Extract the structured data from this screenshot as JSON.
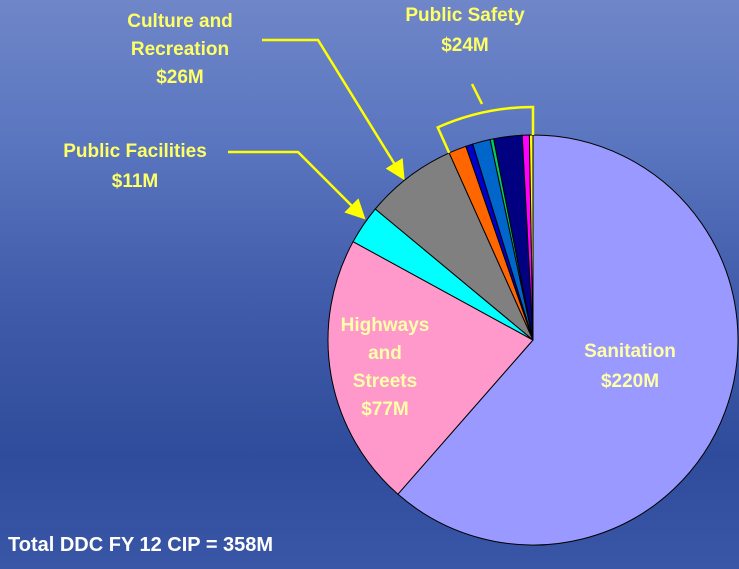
{
  "chart_data": {
    "type": "pie",
    "categories": [
      "Sanitation",
      "Highways and Streets",
      "Public Facilities",
      "Culture and Recreation",
      "Public Safety"
    ],
    "values": [
      220,
      77,
      11,
      26,
      24
    ],
    "value_labels": [
      "$220M",
      "$77M",
      "$11M",
      "$26M",
      "$24M"
    ],
    "colors": [
      "#9999ff",
      "#ff99cc",
      "#00ffff",
      "#808080",
      null
    ],
    "public_safety_parts": {
      "values": [
        5,
        2,
        5,
        1,
        8,
        2,
        1
      ],
      "colors": [
        "#ff6600",
        "#0000cc",
        "#0066cc",
        "#00cc66",
        "#000080",
        "#ff00ff",
        "#ffff00"
      ]
    },
    "footnote": "Total DDC FY 12 CIP = 358M"
  }
}
